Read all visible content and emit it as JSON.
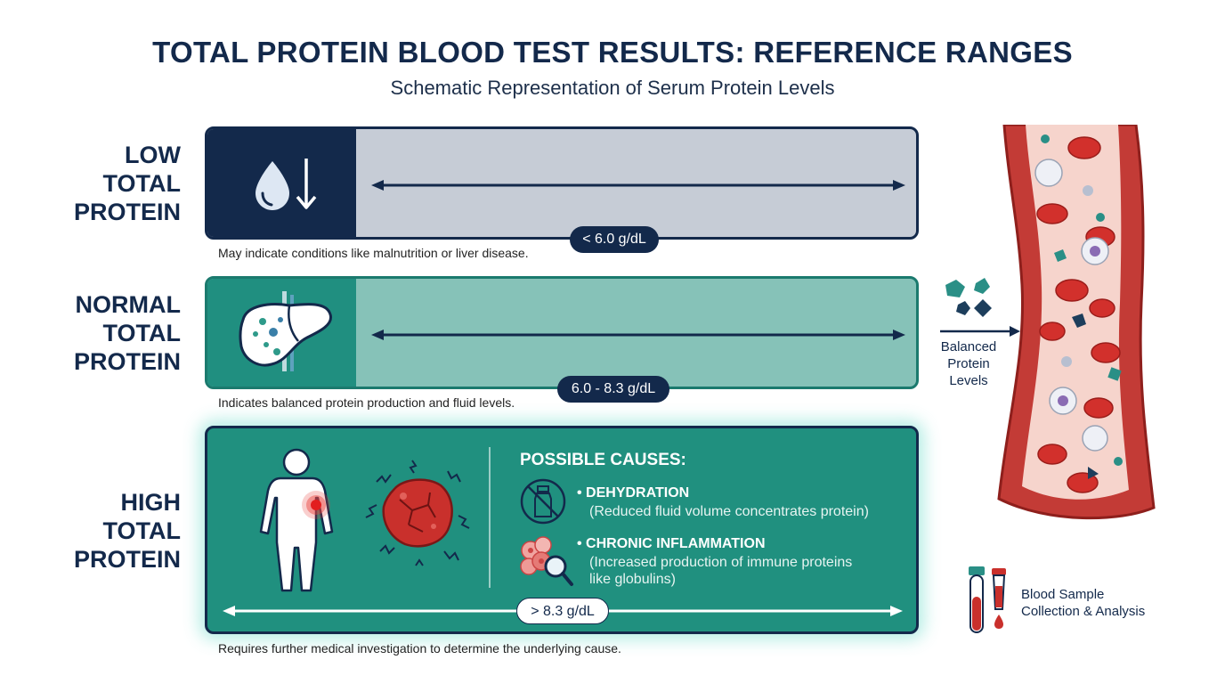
{
  "title": "TOTAL PROTEIN BLOOD TEST RESULTS: REFERENCE RANGES",
  "subtitle": "Schematic Representation of Serum Protein Levels",
  "colors": {
    "navy": "#13294b",
    "teal": "#208f80",
    "light_teal": "#86c2b8",
    "gray": "#c6ccd6",
    "blood_red": "#c9302c"
  },
  "ranges": {
    "low": {
      "label_lines": [
        "LOW",
        "TOTAL",
        "PROTEIN"
      ],
      "value": "< 6.0 g/dL",
      "note": "May indicate conditions like malnutrition or liver disease.",
      "icon": "water-drop-down-arrow-icon"
    },
    "normal": {
      "label_lines": [
        "NORMAL",
        "TOTAL",
        "PROTEIN"
      ],
      "value": "6.0 - 8.3 g/dL",
      "note": "Indicates balanced protein production and fluid levels.",
      "icon": "liver-icon"
    },
    "high": {
      "label_lines": [
        "HIGH",
        "TOTAL",
        "PROTEIN"
      ],
      "value": "> 8.3 g/dL",
      "note": "Requires further medical investigation to determine the underlying cause.",
      "icons": [
        "human-body-inflammation-icon",
        "inflamed-cell-icon"
      ],
      "causes_title": "POSSIBLE CAUSES:",
      "causes": [
        {
          "name": "• DEHYDRATION",
          "desc_lines": [
            "(Reduced fluid volume concentrates protein)"
          ],
          "icon": "no-water-bottle-icon"
        },
        {
          "name": "• CHRONIC INFLAMMATION",
          "desc_lines": [
            "(Increased production of immune proteins",
            "like globulins)"
          ],
          "icon": "immune-cells-magnifier-icon"
        }
      ]
    }
  },
  "vessel": {
    "caption_lines": [
      "Balanced",
      "Protein",
      "Levels"
    ],
    "icon": "blood-vessel-icon"
  },
  "sample": {
    "caption_lines": [
      "Blood Sample",
      "Collection & Analysis"
    ],
    "icon": "blood-test-tubes-icon"
  }
}
